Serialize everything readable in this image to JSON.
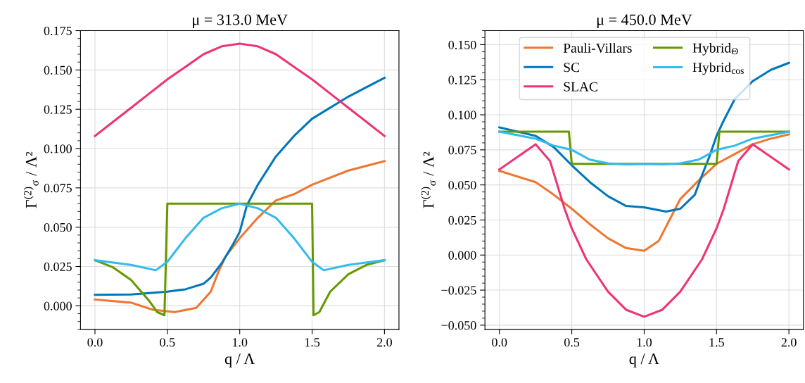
{
  "chart_data": [
    {
      "type": "line",
      "title": "μ = 313.0 MeV",
      "xlabel": "q / Λ",
      "ylabel": "Γ$^{(2)}$$_{σ}$ / Λ²",
      "xlim": [
        -0.1,
        2.1
      ],
      "ylim": [
        -0.015,
        0.175
      ],
      "xticks": [
        {
          "value": 0,
          "label": "0.0"
        },
        {
          "value": 0.5,
          "label": "0.5"
        },
        {
          "value": 1,
          "label": "1.0"
        },
        {
          "value": 1.5,
          "label": "1.5"
        },
        {
          "value": 2,
          "label": "2.0"
        }
      ],
      "yticks": [
        {
          "value": 0,
          "label": "0.000"
        },
        {
          "value": 0.025,
          "label": "0.025"
        },
        {
          "value": 0.05,
          "label": "0.050"
        },
        {
          "value": 0.075,
          "label": "0.075"
        },
        {
          "value": 0.1,
          "label": "0.100"
        },
        {
          "value": 0.125,
          "label": "0.125"
        },
        {
          "value": 0.15,
          "label": "0.150"
        },
        {
          "value": 0.175,
          "label": "0.175"
        }
      ],
      "grid": true,
      "line_style": "solid",
      "marker": "none",
      "series": [
        {
          "color": "#ee7733",
          "x": [
            0,
            0.25,
            0.4,
            0.55,
            0.7,
            0.8,
            0.85,
            0.9,
            1.0,
            1.125,
            1.25,
            1.375,
            1.5,
            1.75,
            2.0
          ],
          "values": [
            0.004,
            0.002,
            -0.0025,
            -0.004,
            -0.0013,
            0.009,
            0.021,
            0.031,
            0.043,
            0.056,
            0.067,
            0.071,
            0.077,
            0.086,
            0.092
          ]
        },
        {
          "color": "#0077bb",
          "x": [
            0,
            0.25,
            0.5,
            0.625,
            0.75,
            0.8,
            0.875,
            0.95,
            1.0,
            1.05,
            1.125,
            1.25,
            1.375,
            1.5,
            1.75,
            1.875,
            2.0
          ],
          "values": [
            0.007,
            0.0072,
            0.009,
            0.0105,
            0.014,
            0.018,
            0.027,
            0.0385,
            0.047,
            0.064,
            0.077,
            0.095,
            0.108,
            0.119,
            0.133,
            0.139,
            0.145
          ]
        },
        {
          "color": "#ee3377",
          "x": [
            0,
            0.125,
            0.25,
            0.375,
            0.5,
            0.625,
            0.75,
            0.875,
            1.0,
            1.125,
            1.25,
            1.375,
            1.5,
            1.625,
            1.75,
            1.875,
            2.0
          ],
          "values": [
            0.108,
            0.117,
            0.126,
            0.135,
            0.144,
            0.152,
            0.16,
            0.165,
            0.1667,
            0.165,
            0.16,
            0.152,
            0.144,
            0.135,
            0.126,
            0.117,
            0.108
          ]
        },
        {
          "color": "#669900",
          "x": [
            0,
            0.125,
            0.25,
            0.375,
            0.43,
            0.48,
            0.5,
            1.5,
            1.51,
            1.55,
            1.625,
            1.75,
            1.875,
            2.0
          ],
          "values": [
            0.029,
            0.0245,
            0.0164,
            0.0031,
            -0.004,
            -0.006,
            0.065,
            0.065,
            -0.006,
            -0.004,
            0.009,
            0.02,
            0.026,
            0.029
          ]
        },
        {
          "color": "#33bbee",
          "x": [
            0,
            0.25,
            0.42,
            0.5,
            0.625,
            0.75,
            0.875,
            1.0,
            1.125,
            1.25,
            1.375,
            1.5,
            1.58,
            1.75,
            2.0
          ],
          "values": [
            0.029,
            0.026,
            0.0226,
            0.028,
            0.043,
            0.056,
            0.062,
            0.065,
            0.062,
            0.056,
            0.043,
            0.028,
            0.0226,
            0.026,
            0.029
          ]
        }
      ]
    },
    {
      "type": "line",
      "title": "μ = 450.0 MeV",
      "xlabel": "q / Λ",
      "ylabel": "Γ$^{(2)}$$_{σ}$ / Λ²",
      "xlim": [
        -0.1,
        2.1
      ],
      "ylim": [
        -0.053,
        0.16
      ],
      "xticks": [
        {
          "value": 0,
          "label": "0.0"
        },
        {
          "value": 0.5,
          "label": "0.5"
        },
        {
          "value": 1,
          "label": "1.0"
        },
        {
          "value": 1.5,
          "label": "1.5"
        },
        {
          "value": 2,
          "label": "2.0"
        }
      ],
      "yticks": [
        {
          "value": -0.05,
          "label": "−0.050"
        },
        {
          "value": -0.025,
          "label": "−0.025"
        },
        {
          "value": 0,
          "label": "0.000"
        },
        {
          "value": 0.025,
          "label": "0.025"
        },
        {
          "value": 0.05,
          "label": "0.050"
        },
        {
          "value": 0.075,
          "label": "0.075"
        },
        {
          "value": 0.1,
          "label": "0.100"
        },
        {
          "value": 0.125,
          "label": "0.125"
        },
        {
          "value": 0.15,
          "label": "0.150"
        }
      ],
      "grid": true,
      "legend": "top",
      "line_style": "solid",
      "marker": "none",
      "series": [
        {
          "name": "Pauli-Villars",
          "color": "#ee7733",
          "x": [
            0,
            0.25,
            0.375,
            0.5,
            0.625,
            0.75,
            0.875,
            1.0,
            1.1,
            1.175,
            1.25,
            1.375,
            1.5,
            1.625,
            1.75,
            1.875,
            2.0
          ],
          "values": [
            0.06,
            0.052,
            0.043,
            0.033,
            0.022,
            0.012,
            0.005,
            0.003,
            0.01,
            0.025,
            0.04,
            0.053,
            0.065,
            0.072,
            0.079,
            0.083,
            0.086
          ]
        },
        {
          "name": "SC",
          "color": "#0077bb",
          "x": [
            0,
            0.25,
            0.375,
            0.5,
            0.625,
            0.75,
            0.875,
            1.0,
            1.15,
            1.25,
            1.35,
            1.4,
            1.45,
            1.5,
            1.55,
            1.625,
            1.75,
            1.875,
            2.0
          ],
          "values": [
            0.091,
            0.085,
            0.077,
            0.064,
            0.052,
            0.042,
            0.035,
            0.034,
            0.031,
            0.033,
            0.043,
            0.057,
            0.07,
            0.085,
            0.096,
            0.111,
            0.124,
            0.132,
            0.137
          ]
        },
        {
          "name": "SLAC",
          "color": "#ee3377",
          "x": [
            0,
            0.25,
            0.35,
            0.45,
            0.5,
            0.6,
            0.75,
            0.875,
            1.0,
            1.125,
            1.25,
            1.4,
            1.5,
            1.55,
            1.65,
            1.75,
            2.0
          ],
          "values": [
            0.061,
            0.079,
            0.067,
            0.033,
            0.019,
            -0.003,
            -0.026,
            -0.039,
            -0.044,
            -0.039,
            -0.026,
            -0.003,
            0.019,
            0.033,
            0.067,
            0.079,
            0.061
          ]
        },
        {
          "name": "Hybrid$_{Θ}$",
          "color": "#669900",
          "x": [
            0,
            0.48,
            0.5,
            1.5,
            1.52,
            2.0
          ],
          "values": [
            0.088,
            0.088,
            0.065,
            0.065,
            0.088,
            0.088
          ]
        },
        {
          "name": "Hybrid$_{cos}$",
          "color": "#33bbee",
          "x": [
            0,
            0.25,
            0.375,
            0.5,
            0.625,
            0.75,
            0.875,
            1.0,
            1.125,
            1.25,
            1.375,
            1.5,
            1.625,
            1.75,
            2.0
          ],
          "values": [
            0.088,
            0.083,
            0.078,
            0.075,
            0.068,
            0.0654,
            0.0646,
            0.065,
            0.0646,
            0.0654,
            0.068,
            0.075,
            0.078,
            0.083,
            0.088
          ]
        }
      ]
    }
  ]
}
